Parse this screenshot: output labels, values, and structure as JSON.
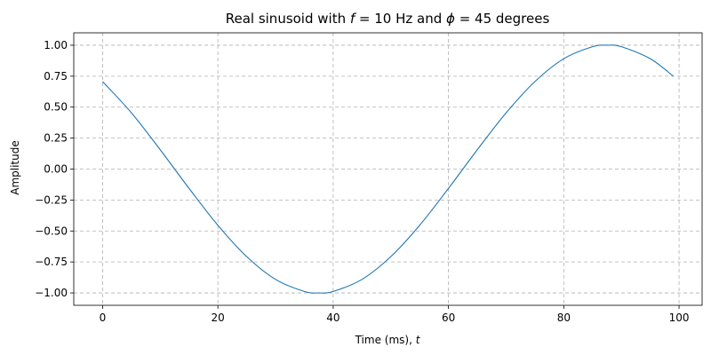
{
  "chart_data": {
    "type": "line",
    "title": {
      "prefix": "Real sinusoid with ",
      "f_symbol": "f",
      "f_value": " = 10 Hz and ",
      "phi_symbol": "ϕ",
      "phi_value": " = 45 degrees"
    },
    "xlabel": {
      "text": "Time (ms), ",
      "symbol": "t"
    },
    "ylabel": "Amplitude",
    "xlim": [
      -5,
      104
    ],
    "ylim": [
      -1.1,
      1.1
    ],
    "xticks": [
      0,
      20,
      40,
      60,
      80,
      100
    ],
    "xtick_labels": [
      "0",
      "20",
      "40",
      "60",
      "80",
      "100"
    ],
    "yticks": [
      -1.0,
      -0.75,
      -0.5,
      -0.25,
      0.0,
      0.25,
      0.5,
      0.75,
      1.0
    ],
    "ytick_labels": [
      "−1.00",
      "−0.75",
      "−0.50",
      "−0.25",
      "0.00",
      "0.25",
      "0.50",
      "0.75",
      "1.00"
    ],
    "grid": true,
    "series": [
      {
        "color": "#1f77b4",
        "x": [
          0,
          5,
          10,
          15,
          20,
          25,
          30,
          35,
          37.5,
          40,
          45,
          50,
          55,
          60,
          65,
          70,
          75,
          80,
          85,
          87.5,
          90,
          95,
          99
        ],
        "y": [
          0.707,
          0.454,
          0.156,
          -0.156,
          -0.454,
          -0.707,
          -0.891,
          -0.988,
          -1.0,
          -0.988,
          -0.891,
          -0.707,
          -0.454,
          -0.156,
          0.156,
          0.454,
          0.707,
          0.891,
          0.988,
          1.0,
          0.988,
          0.891,
          0.75
        ]
      }
    ]
  }
}
